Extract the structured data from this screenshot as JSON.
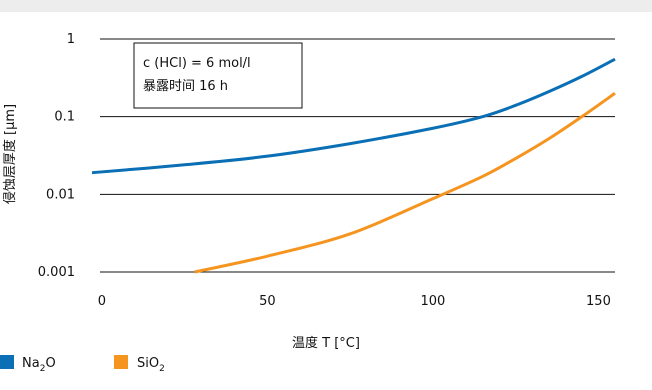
{
  "chart_data": {
    "type": "line",
    "title": "",
    "xlabel": "温度 T [°C]",
    "ylabel": "侵蚀层厚度 [µm]",
    "x_ticks": [
      0,
      50,
      100,
      150
    ],
    "y_ticks": [
      0.001,
      0.01,
      0.1,
      1
    ],
    "x_tick_labels": [
      "0",
      "50",
      "100",
      "150"
    ],
    "y_tick_labels": [
      "0.001",
      "0.01",
      "0.1",
      "1"
    ],
    "xlim": [
      -3,
      155
    ],
    "ylim": [
      0.001,
      1
    ],
    "y_scale": "log",
    "grid": "horizontal",
    "legend_position": "bottom-left",
    "annotation": {
      "line1": "c (HCl) = 6 mol/l",
      "line2": "暴露时间 16 h"
    },
    "series": [
      {
        "name": "Na2O",
        "legend_base": "Na",
        "legend_sub": "2",
        "legend_rest": "O",
        "color": "#0a6fb4",
        "x": [
          -3,
          25,
          50,
          75,
          100,
          115,
          125,
          135,
          145,
          155
        ],
        "y": [
          0.019,
          0.024,
          0.031,
          0.045,
          0.071,
          0.1,
          0.14,
          0.21,
          0.33,
          0.55
        ]
      },
      {
        "name": "SiO2",
        "legend_base": "SiO",
        "legend_sub": "2",
        "legend_rest": "",
        "color": "#f5941e",
        "x": [
          28,
          50,
          75,
          100,
          115,
          125,
          135,
          145,
          155
        ],
        "y": [
          0.001,
          0.0016,
          0.0031,
          0.0088,
          0.017,
          0.029,
          0.052,
          0.1,
          0.2
        ]
      }
    ]
  }
}
